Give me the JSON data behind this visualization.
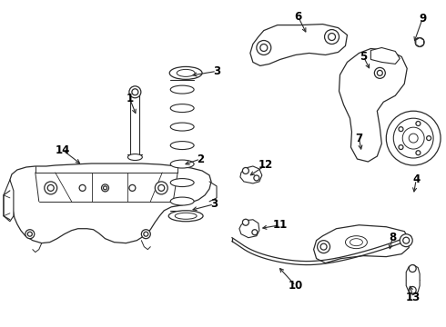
{
  "bg_color": "#ffffff",
  "line_color": "#2a2a2a",
  "label_color": "#000000",
  "figsize": [
    4.9,
    3.6
  ],
  "dpi": 100,
  "label_arrow_data": [
    [
      "1",
      142,
      108,
      150,
      128
    ],
    [
      "2",
      220,
      175,
      200,
      182
    ],
    [
      "3",
      238,
      78,
      208,
      83
    ],
    [
      "3",
      235,
      225,
      208,
      232
    ],
    [
      "4",
      458,
      198,
      455,
      215
    ],
    [
      "5",
      400,
      62,
      408,
      78
    ],
    [
      "6",
      328,
      18,
      338,
      38
    ],
    [
      "7",
      395,
      152,
      398,
      168
    ],
    [
      "8",
      432,
      262,
      428,
      278
    ],
    [
      "9",
      465,
      20,
      455,
      48
    ],
    [
      "10",
      325,
      315,
      305,
      293
    ],
    [
      "11",
      308,
      248,
      285,
      252
    ],
    [
      "12",
      292,
      182,
      272,
      195
    ],
    [
      "13",
      455,
      328,
      450,
      312
    ],
    [
      "14",
      68,
      165,
      90,
      182
    ]
  ]
}
